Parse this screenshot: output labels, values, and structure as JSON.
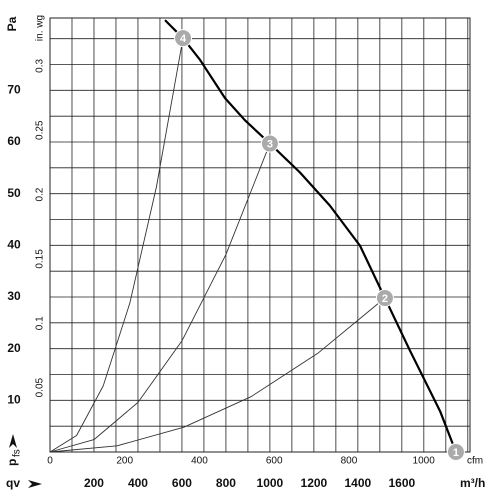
{
  "chart_data": {
    "type": "line",
    "x_unit": "m³/h",
    "x_symbol": "qv",
    "x2_unit": "cfm",
    "y_unit": "Pa",
    "y2_unit": "in. wg",
    "y_symbol": "p",
    "y_symbol_sub": "fs",
    "xlim": [
      0,
      1910
    ],
    "xticks": [
      200,
      400,
      600,
      800,
      1000,
      1200,
      1400,
      1600
    ],
    "x2lim": [
      0,
      1124
    ],
    "x2ticks": [
      0,
      200,
      400,
      600,
      800,
      1000
    ],
    "ylim": [
      0,
      84
    ],
    "yticks": [
      10,
      20,
      30,
      40,
      50,
      60,
      70
    ],
    "y2lim": [
      0,
      0.3372
    ],
    "y2ticks": [
      0.05,
      0.1,
      0.15,
      0.2,
      0.25,
      0.3
    ],
    "xgrid": [
      100,
      200,
      300,
      400,
      500,
      600,
      700,
      800,
      900,
      1000,
      1100,
      1200,
      1300,
      1400,
      1500,
      1600,
      1700,
      1800,
      1900
    ],
    "ygrid": [
      5,
      10,
      15,
      20,
      25,
      30,
      35,
      40,
      45,
      50,
      55,
      60,
      65,
      70,
      75,
      80
    ],
    "grid": true,
    "series": [
      {
        "color": "#000000",
        "x": [
          523,
          605,
          682,
          796,
          887,
          1000,
          1137,
          1273,
          1410,
          1523,
          1637,
          1774,
          1846
        ],
        "values": [
          83.6,
          80.1,
          75.9,
          68.5,
          64.2,
          59.7,
          54.1,
          47.7,
          39.9,
          29.8,
          19.6,
          7.9,
          0
        ]
      },
      {
        "color": "#333333",
        "x": [
          0,
          121,
          242,
          363,
          484,
          605
        ],
        "values": [
          0,
          3.2,
          12.8,
          28.8,
          51.3,
          80.1
        ]
      },
      {
        "color": "#333333",
        "x": [
          0,
          200,
          400,
          600,
          800,
          1000
        ],
        "values": [
          0,
          2.4,
          9.6,
          21.5,
          38.2,
          59.7
        ]
      },
      {
        "color": "#333333",
        "x": [
          0,
          305,
          609,
          914,
          1218,
          1523
        ],
        "values": [
          0,
          1.2,
          4.8,
          10.7,
          19.1,
          29.8
        ]
      }
    ],
    "operating_points": {
      "color": "#aaaaaa",
      "labels": [
        "1",
        "2",
        "3",
        "4"
      ],
      "x": [
        1846,
        1523,
        1000,
        605
      ],
      "values": [
        0,
        29.8,
        59.7,
        80.1
      ]
    }
  }
}
